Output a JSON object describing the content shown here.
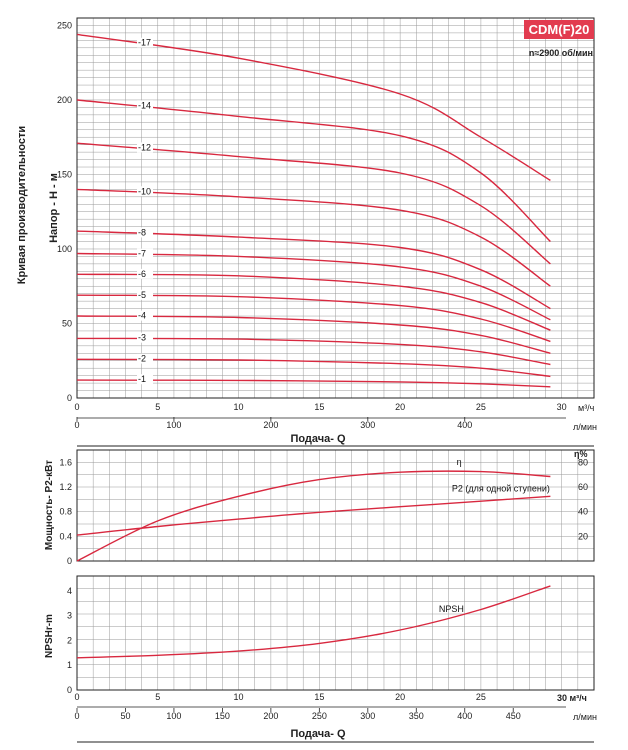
{
  "badge": {
    "text": "CDM(F)20",
    "color": "#e23b4f"
  },
  "speed": "n≈2900 об/мин",
  "side_title": "Кривая производительности",
  "colors": {
    "curve": "#d8283f"
  },
  "chart_data": [
    {
      "type": "line",
      "title": "",
      "ylabel": "Напор - H - м",
      "xlabel": "Подача- Q",
      "xunit_top": "м³/ч",
      "xunit_bottom": "л/мин",
      "ylim": [
        0,
        255
      ],
      "xlim": [
        0,
        32
      ],
      "yticks": [
        "0",
        "50",
        "100",
        "150",
        "200",
        "250"
      ],
      "xticks": [
        "0",
        "5",
        "10",
        "15",
        "20",
        "25",
        "30"
      ],
      "xticks_lmin": [
        "0",
        "100",
        "200",
        "300",
        "400"
      ],
      "series": [
        {
          "name": "-1",
          "x": [
            0,
            10,
            20,
            25,
            29.3
          ],
          "values": [
            12,
            11.8,
            10.8,
            9.5,
            7.5
          ]
        },
        {
          "name": "-2",
          "x": [
            0,
            10,
            20,
            25,
            29.3
          ],
          "values": [
            26,
            25.5,
            23,
            20,
            14.5
          ]
        },
        {
          "name": "-3",
          "x": [
            0,
            10,
            20,
            25,
            29.3
          ],
          "values": [
            40,
            39.5,
            36,
            31,
            22.5
          ]
        },
        {
          "name": "-4",
          "x": [
            0,
            10,
            20,
            25,
            29.3
          ],
          "values": [
            55,
            54,
            49,
            42,
            30
          ]
        },
        {
          "name": "-5",
          "x": [
            0,
            10,
            20,
            25,
            29.3
          ],
          "values": [
            69,
            68,
            62,
            53,
            38
          ]
        },
        {
          "name": "-6",
          "x": [
            0,
            10,
            20,
            25,
            29.3
          ],
          "values": [
            83,
            82,
            75,
            64,
            45.5
          ]
        },
        {
          "name": "-7",
          "x": [
            0,
            10,
            20,
            25,
            29.3
          ],
          "values": [
            97,
            95,
            88,
            75,
            52.5
          ]
        },
        {
          "name": "-8",
          "x": [
            0,
            10,
            20,
            25,
            29.3
          ],
          "values": [
            112,
            108,
            101,
            86,
            60
          ]
        },
        {
          "name": "-10",
          "x": [
            0,
            10,
            20,
            25,
            29.3
          ],
          "values": [
            140,
            135,
            126,
            108,
            75
          ]
        },
        {
          "name": "-12",
          "x": [
            0,
            10,
            20,
            25,
            29.3
          ],
          "values": [
            171,
            162,
            151,
            129,
            90
          ]
        },
        {
          "name": "-14",
          "x": [
            0,
            10,
            20,
            25,
            29.3
          ],
          "values": [
            200,
            189,
            176,
            151,
            105
          ]
        },
        {
          "name": "-17",
          "x": [
            0,
            10,
            20,
            25,
            29.3
          ],
          "values": [
            244,
            228,
            204,
            175,
            146
          ]
        }
      ]
    },
    {
      "type": "line",
      "ylabel": "Мощность- P2-кВт",
      "ylabel_right": "η%",
      "ylim": [
        0,
        1.8
      ],
      "yticks": [
        "0",
        "0.4",
        "0.8",
        "1.2",
        "1.6"
      ],
      "yticks_right": [
        "20",
        "40",
        "60",
        "80"
      ],
      "series": [
        {
          "name": "η",
          "x": [
            0,
            5,
            10,
            15,
            20,
            25,
            29.3
          ],
          "values": [
            0,
            0.65,
            1.05,
            1.32,
            1.44,
            1.45,
            1.37
          ]
        },
        {
          "name": "P2 (для одной ступени)",
          "x": [
            0,
            5,
            10,
            15,
            20,
            25,
            29.3
          ],
          "values": [
            0.42,
            0.56,
            0.68,
            0.79,
            0.88,
            0.97,
            1.05
          ]
        }
      ]
    },
    {
      "type": "line",
      "ylabel": "NPSHr-m",
      "xlabel": "Подача- Q",
      "xunit_top": "м³/ч",
      "xunit_bottom": "л/мин",
      "ylim": [
        0,
        4.6
      ],
      "yticks": [
        "0",
        "1",
        "2",
        "3",
        "4"
      ],
      "xticks": [
        "0",
        "5",
        "10",
        "15",
        "20",
        "25",
        "30"
      ],
      "xticks_lmin": [
        "0",
        "50",
        "100",
        "150",
        "200",
        "250",
        "300",
        "350",
        "400",
        "450"
      ],
      "series": [
        {
          "name": "NPSH",
          "x": [
            0,
            5,
            10,
            15,
            20,
            25,
            29.3
          ],
          "values": [
            1.3,
            1.4,
            1.57,
            1.88,
            2.42,
            3.25,
            4.2
          ]
        }
      ]
    }
  ]
}
